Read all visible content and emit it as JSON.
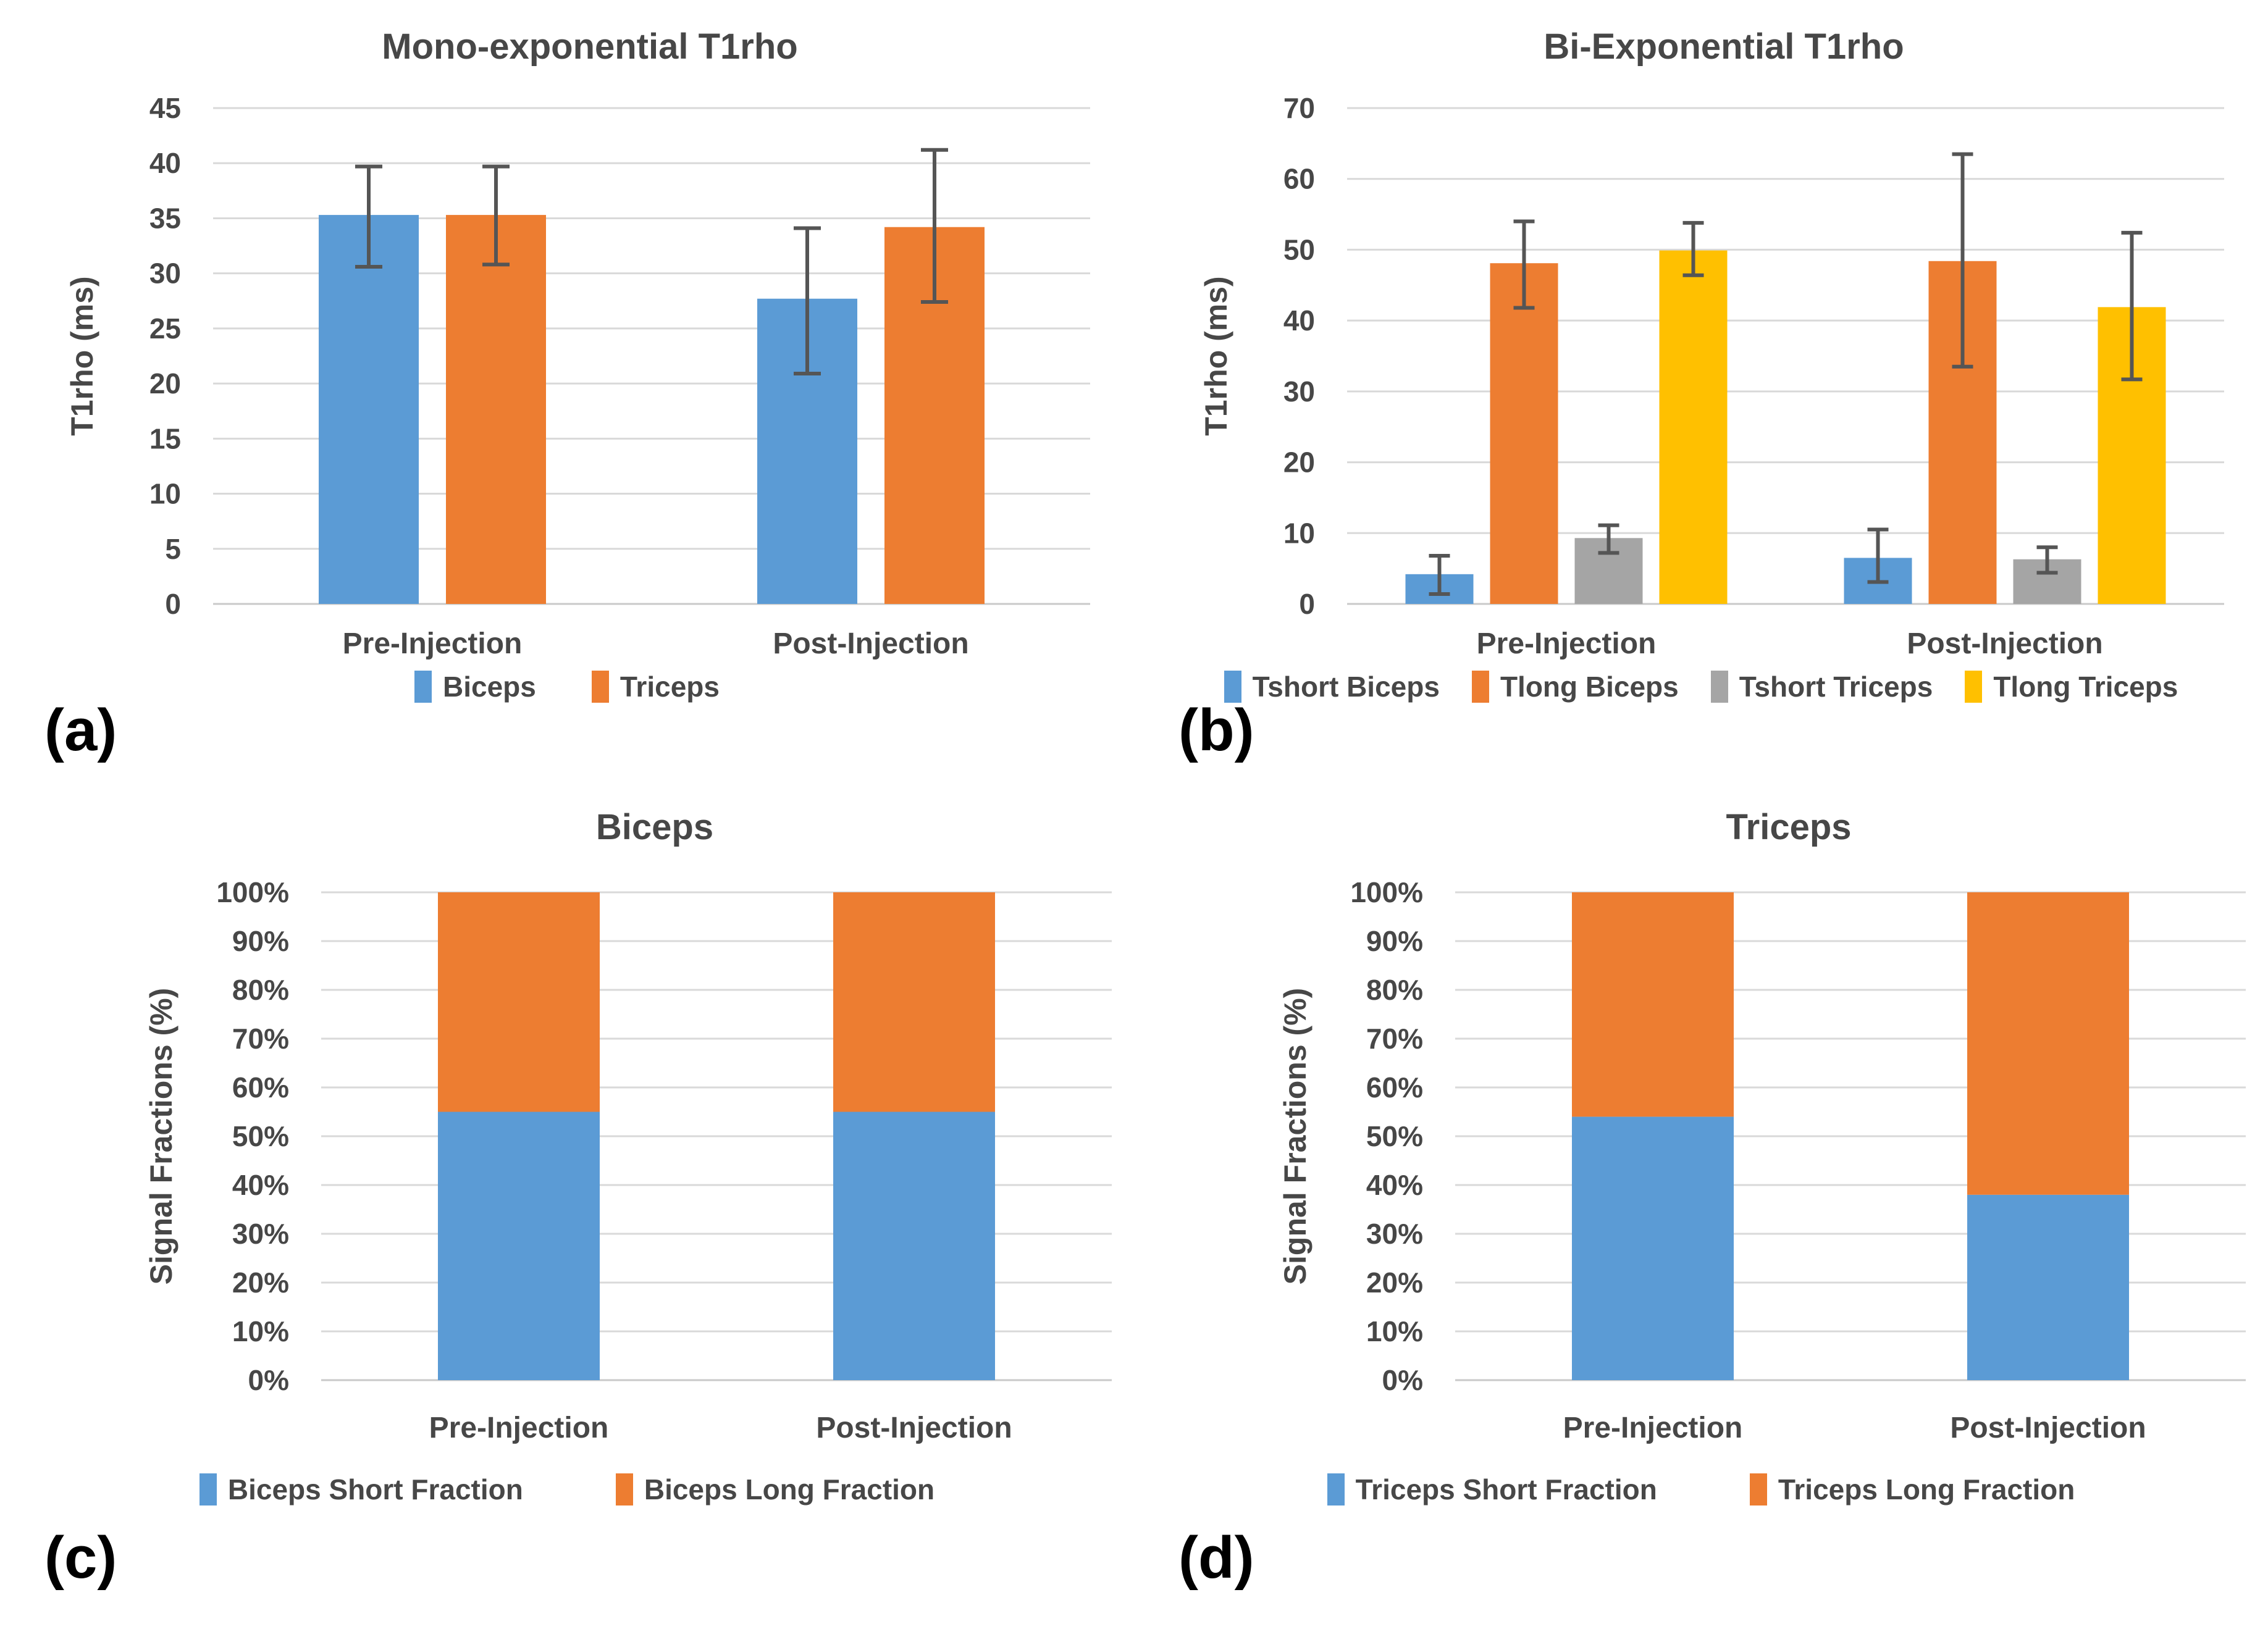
{
  "colors": {
    "blue": "#5B9BD5",
    "orange": "#ED7D31",
    "gray": "#A5A5A5",
    "yellow": "#FFC000",
    "text": "#474747",
    "grid": "#D9D9D9",
    "axis_line": "#C9C9C9",
    "error_bar": "#555555",
    "panel_label": "#000000"
  },
  "panels": [
    {
      "label": "(a)"
    },
    {
      "label": "(b)"
    },
    {
      "label": "(c)"
    },
    {
      "label": "(d)"
    }
  ],
  "chart_data": [
    {
      "type": "bar",
      "title": "Mono-exponential T1rho",
      "xlabel": "",
      "ylabel": "T1rho (ms)",
      "categories": [
        "Pre-Injection",
        "Post-Injection"
      ],
      "ylim": [
        0,
        45
      ],
      "ytick_step": 5,
      "ytick_suffix": "",
      "grid": true,
      "legend_position": "bottom",
      "series": [
        {
          "name": "Biceps",
          "color_key": "blue",
          "values": [
            35.3,
            27.7
          ],
          "error_low": [
            30.6,
            20.9
          ],
          "error_high": [
            39.7,
            34.1
          ]
        },
        {
          "name": "Triceps",
          "color_key": "orange",
          "values": [
            35.3,
            34.2
          ],
          "error_low": [
            30.8,
            27.4
          ],
          "error_high": [
            39.7,
            41.2
          ]
        }
      ]
    },
    {
      "type": "bar",
      "title": "Bi-Exponential T1rho",
      "xlabel": "",
      "ylabel": "T1rho (ms)",
      "categories": [
        "Pre-Injection",
        "Post-Injection"
      ],
      "ylim": [
        0,
        70
      ],
      "ytick_step": 10,
      "ytick_suffix": "",
      "grid": true,
      "legend_position": "bottom",
      "series": [
        {
          "name": "Tshort Biceps",
          "color_key": "blue",
          "values": [
            4.2,
            6.5
          ],
          "error_low": [
            1.4,
            3.1
          ],
          "error_high": [
            6.8,
            10.5
          ]
        },
        {
          "name": "Tlong Biceps",
          "color_key": "orange",
          "values": [
            48.1,
            48.4
          ],
          "error_low": [
            41.8,
            33.5
          ],
          "error_high": [
            54.0,
            63.5
          ]
        },
        {
          "name": "Tshort Triceps",
          "color_key": "gray",
          "values": [
            9.3,
            6.3
          ],
          "error_low": [
            7.2,
            4.4
          ],
          "error_high": [
            11.1,
            8.0
          ]
        },
        {
          "name": "Tlong Triceps",
          "color_key": "yellow",
          "values": [
            49.9,
            41.9
          ],
          "error_low": [
            46.4,
            31.7
          ],
          "error_high": [
            53.8,
            52.4
          ]
        }
      ]
    },
    {
      "type": "stacked-bar",
      "title": "Biceps",
      "xlabel": "",
      "ylabel": "Signal Fractions (%)",
      "categories": [
        "Pre-Injection",
        "Post-Injection"
      ],
      "ylim": [
        0,
        100
      ],
      "ytick_step": 10,
      "ytick_suffix": "%",
      "grid": true,
      "legend_position": "bottom",
      "series": [
        {
          "name": "Biceps Short Fraction",
          "color_key": "blue",
          "values": [
            55,
            55
          ]
        },
        {
          "name": "Biceps Long Fraction",
          "color_key": "orange",
          "values": [
            45,
            45
          ]
        }
      ]
    },
    {
      "type": "stacked-bar",
      "title": "Triceps",
      "xlabel": "",
      "ylabel": "Signal Fractions (%)",
      "categories": [
        "Pre-Injection",
        "Post-Injection"
      ],
      "ylim": [
        0,
        100
      ],
      "ytick_step": 10,
      "ytick_suffix": "%",
      "grid": true,
      "legend_position": "bottom",
      "series": [
        {
          "name": "Triceps Short Fraction",
          "color_key": "blue",
          "values": [
            54,
            38
          ]
        },
        {
          "name": "Triceps Long Fraction",
          "color_key": "orange",
          "values": [
            46,
            62
          ]
        }
      ]
    }
  ]
}
